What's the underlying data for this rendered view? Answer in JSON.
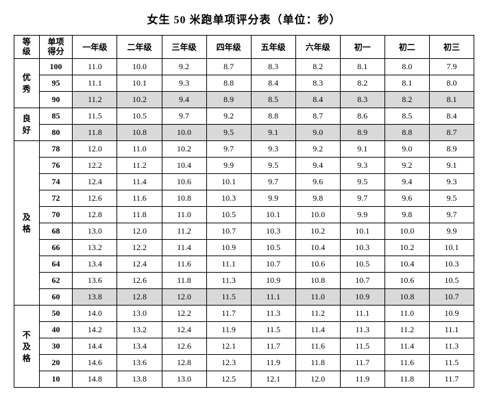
{
  "title": "女生 50 米跑单项评分表（单位：秒）",
  "headers": {
    "level": "等\n级",
    "score": "单项\n得分",
    "grades": [
      "一年级",
      "二年级",
      "三年级",
      "四年级",
      "五年级",
      "六年级",
      "初一",
      "初二",
      "初三"
    ]
  },
  "levels": [
    {
      "name": "优\n秀",
      "rows": [
        {
          "score": "100",
          "shaded": false,
          "vals": [
            "11.0",
            "10.0",
            "9.2",
            "8.7",
            "8.3",
            "8.2",
            "8.1",
            "8.0",
            "7.9"
          ]
        },
        {
          "score": "95",
          "shaded": false,
          "vals": [
            "11.1",
            "10.1",
            "9.3",
            "8.8",
            "8.4",
            "8.3",
            "8.2",
            "8.1",
            "8.0"
          ]
        },
        {
          "score": "90",
          "shaded": true,
          "vals": [
            "11.2",
            "10.2",
            "9.4",
            "8.9",
            "8.5",
            "8.4",
            "8.3",
            "8.2",
            "8.1"
          ]
        }
      ]
    },
    {
      "name": "良\n好",
      "rows": [
        {
          "score": "85",
          "shaded": false,
          "vals": [
            "11.5",
            "10.5",
            "9.7",
            "9.2",
            "8.8",
            "8.7",
            "8.6",
            "8.5",
            "8.4"
          ]
        },
        {
          "score": "80",
          "shaded": true,
          "vals": [
            "11.8",
            "10.8",
            "10.0",
            "9.5",
            "9.1",
            "9.0",
            "8.9",
            "8.8",
            "8.7"
          ]
        }
      ]
    },
    {
      "name": "及\n格",
      "rows": [
        {
          "score": "78",
          "shaded": false,
          "vals": [
            "12.0",
            "11.0",
            "10.2",
            "9.7",
            "9.3",
            "9.2",
            "9.1",
            "9.0",
            "8.9"
          ]
        },
        {
          "score": "76",
          "shaded": false,
          "vals": [
            "12.2",
            "11.2",
            "10.4",
            "9.9",
            "9.5",
            "9.4",
            "9.3",
            "9.2",
            "9.1"
          ]
        },
        {
          "score": "74",
          "shaded": false,
          "vals": [
            "12.4",
            "11.4",
            "10.6",
            "10.1",
            "9.7",
            "9.6",
            "9.5",
            "9.4",
            "9.3"
          ]
        },
        {
          "score": "72",
          "shaded": false,
          "vals": [
            "12.6",
            "11.6",
            "10.8",
            "10.3",
            "9.9",
            "9.8",
            "9.7",
            "9.6",
            "9.5"
          ]
        },
        {
          "score": "70",
          "shaded": false,
          "vals": [
            "12.8",
            "11.8",
            "11.0",
            "10.5",
            "10.1",
            "10.0",
            "9.9",
            "9.8",
            "9.7"
          ]
        },
        {
          "score": "68",
          "shaded": false,
          "vals": [
            "13.0",
            "12.0",
            "11.2",
            "10.7",
            "10.3",
            "10.2",
            "10.1",
            "10.0",
            "9.9"
          ]
        },
        {
          "score": "66",
          "shaded": false,
          "vals": [
            "13.2",
            "12.2",
            "11.4",
            "10.9",
            "10.5",
            "10.4",
            "10.3",
            "10.2",
            "10.1"
          ]
        },
        {
          "score": "64",
          "shaded": false,
          "vals": [
            "13.4",
            "12.4",
            "11.6",
            "11.1",
            "10.7",
            "10.6",
            "10.5",
            "10.4",
            "10.3"
          ]
        },
        {
          "score": "62",
          "shaded": false,
          "vals": [
            "13.6",
            "12.6",
            "11.8",
            "11.3",
            "10.9",
            "10.8",
            "10.7",
            "10.6",
            "10.5"
          ]
        },
        {
          "score": "60",
          "shaded": true,
          "vals": [
            "13.8",
            "12.8",
            "12.0",
            "11.5",
            "11.1",
            "11.0",
            "10.9",
            "10.8",
            "10.7"
          ]
        }
      ]
    },
    {
      "name": "不\n及\n格",
      "rows": [
        {
          "score": "50",
          "shaded": false,
          "vals": [
            "14.0",
            "13.0",
            "12.2",
            "11.7",
            "11.3",
            "11.2",
            "11.1",
            "11.0",
            "10.9"
          ]
        },
        {
          "score": "40",
          "shaded": false,
          "vals": [
            "14.2",
            "13.2",
            "12.4",
            "11.9",
            "11.5",
            "11.4",
            "11.3",
            "11.2",
            "11.1"
          ]
        },
        {
          "score": "30",
          "shaded": false,
          "vals": [
            "14.4",
            "13.4",
            "12.6",
            "12.1",
            "11.7",
            "11.6",
            "11.5",
            "11.4",
            "11.3"
          ]
        },
        {
          "score": "20",
          "shaded": false,
          "vals": [
            "14.6",
            "13.6",
            "12.8",
            "12.3",
            "11.9",
            "11.8",
            "11.7",
            "11.6",
            "11.5"
          ]
        },
        {
          "score": "10",
          "shaded": false,
          "vals": [
            "14.8",
            "13.8",
            "13.0",
            "12.5",
            "12.1",
            "12.0",
            "11.9",
            "11.8",
            "11.7"
          ]
        }
      ]
    }
  ]
}
